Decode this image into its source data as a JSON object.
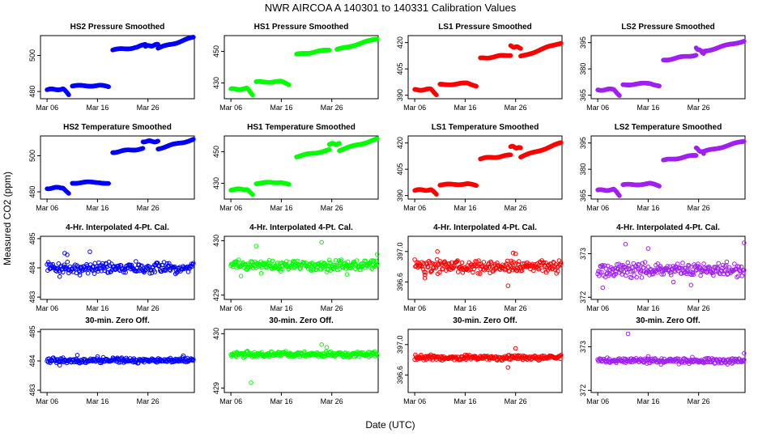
{
  "figure": {
    "title": "NWR   AIRCOA A   140301 to 140331   Calibration Values",
    "xlabel": "Date (UTC)",
    "ylabel": "Measured CO2 (ppm)"
  },
  "colors": {
    "blue": "#0000ff",
    "green": "#00ff00",
    "red": "#ff0000",
    "purple": "#a020f0"
  },
  "x_ticks": {
    "labels": [
      "Mar 06",
      "Mar 16",
      "Mar 26"
    ],
    "days": [
      6,
      16,
      26
    ]
  },
  "chart_data": [
    {
      "type": "scatter",
      "title": "HS2 Pressure Smoothed",
      "color": "blue",
      "marker": "filled",
      "xlim": [
        4.7,
        35.2
      ],
      "ylim": [
        476,
        511
      ],
      "y_ticks": [
        480,
        500
      ],
      "segments": [
        [
          6,
          10.3,
          481,
          481.5,
          -3.5
        ],
        [
          11,
          18.2,
          483,
          483.5,
          -1
        ],
        [
          19,
          25.5,
          503,
          505,
          1
        ],
        [
          25.5,
          28,
          505,
          506,
          0
        ],
        [
          28,
          35,
          504,
          510,
          0
        ]
      ]
    },
    {
      "type": "scatter",
      "title": "HS1 Pressure Smoothed",
      "color": "green",
      "marker": "filled",
      "xlim": [
        4.7,
        35.2
      ],
      "ylim": [
        420,
        460
      ],
      "y_ticks": [
        430,
        450
      ],
      "segments": [
        [
          6,
          10.3,
          426,
          426.5,
          -4
        ],
        [
          11,
          17.5,
          430.5,
          431,
          -2
        ],
        [
          19,
          25.5,
          448,
          451,
          0
        ],
        [
          27,
          35,
          451,
          458,
          0
        ]
      ]
    },
    {
      "type": "scatter",
      "title": "LS1 Pressure Smoothed",
      "color": "red",
      "marker": "filled",
      "xlim": [
        4.7,
        35.2
      ],
      "ylim": [
        388,
        424
      ],
      "y_ticks": [
        390,
        405,
        420
      ],
      "segments": [
        [
          6,
          10.3,
          393,
          393.5,
          -3
        ],
        [
          11,
          18.2,
          396,
          397,
          -1.5
        ],
        [
          19,
          25,
          411,
          413,
          0
        ],
        [
          25,
          27,
          418,
          417,
          0
        ],
        [
          27,
          35,
          412,
          420,
          0
        ]
      ]
    },
    {
      "type": "scatter",
      "title": "LS2 Pressure Smoothed",
      "color": "purple",
      "marker": "filled",
      "xlim": [
        4.7,
        35.2
      ],
      "ylim": [
        363,
        399
      ],
      "y_ticks": [
        365,
        380,
        395
      ],
      "segments": [
        [
          6,
          10.3,
          368,
          368.5,
          -3.5
        ],
        [
          11,
          18.2,
          371,
          372,
          -1.5
        ],
        [
          19,
          25.5,
          385,
          388,
          0
        ],
        [
          25.5,
          27,
          392,
          389,
          0
        ],
        [
          27,
          35,
          390,
          396,
          0
        ]
      ]
    },
    {
      "type": "scatter",
      "title": "HS2 Temperature Smoothed",
      "color": "blue",
      "marker": "filled",
      "xlim": [
        4.7,
        35.2
      ],
      "ylim": [
        476,
        511
      ],
      "y_ticks": [
        480,
        500
      ],
      "segments": [
        [
          6,
          10.3,
          482,
          482.5,
          -3.5
        ],
        [
          11,
          18.2,
          485,
          485.5,
          -1
        ],
        [
          19,
          25,
          502,
          504,
          0
        ],
        [
          25,
          28,
          508,
          508,
          0
        ],
        [
          28,
          35,
          504,
          509,
          0
        ]
      ]
    },
    {
      "type": "scatter",
      "title": "HS1 Temperature Smoothed",
      "color": "green",
      "marker": "filled",
      "xlim": [
        4.7,
        35.2
      ],
      "ylim": [
        420,
        460
      ],
      "y_ticks": [
        430,
        450
      ],
      "segments": [
        [
          6,
          10.3,
          426,
          426.5,
          -4
        ],
        [
          11,
          17.5,
          430,
          431,
          -2
        ],
        [
          19,
          25.5,
          447,
          451,
          0
        ],
        [
          25.5,
          27.5,
          455,
          455,
          0
        ],
        [
          27.5,
          35,
          451,
          458,
          0
        ]
      ]
    },
    {
      "type": "scatter",
      "title": "LS1 Temperature Smoothed",
      "color": "red",
      "marker": "filled",
      "xlim": [
        4.7,
        35.2
      ],
      "ylim": [
        388,
        424
      ],
      "y_ticks": [
        390,
        405,
        420
      ],
      "segments": [
        [
          6,
          10.3,
          393,
          393.5,
          -3
        ],
        [
          11,
          18.2,
          396,
          397,
          -1.5
        ],
        [
          19,
          25,
          411,
          413,
          0
        ],
        [
          25,
          27,
          418,
          417,
          0
        ],
        [
          27,
          35,
          412,
          420,
          0
        ]
      ]
    },
    {
      "type": "scatter",
      "title": "LS2 Temperature Smoothed",
      "color": "purple",
      "marker": "filled",
      "xlim": [
        4.7,
        35.2
      ],
      "ylim": [
        363,
        399
      ],
      "y_ticks": [
        365,
        380,
        395
      ],
      "segments": [
        [
          6,
          10.3,
          368,
          368.5,
          -3.5
        ],
        [
          11,
          18.2,
          371,
          372,
          -1.5
        ],
        [
          19,
          25.5,
          385,
          388,
          0
        ],
        [
          25.5,
          27,
          392,
          389,
          0
        ],
        [
          27,
          35,
          390,
          396,
          0
        ]
      ]
    },
    {
      "type": "scatter",
      "title": "4-Hr. Interpolated 4-Pt. Cal.",
      "color": "blue",
      "marker": "open",
      "xlim": [
        4.7,
        35.2
      ],
      "ylim": [
        482.92,
        485.08
      ],
      "y_ticks": [
        483.0,
        484.0,
        485.0
      ],
      "center": 484.0,
      "spread": 0.11,
      "outliers": [
        [
          9.5,
          484.5
        ],
        [
          10,
          484.45
        ],
        [
          14.5,
          484.55
        ],
        [
          12.5,
          483.75
        ],
        [
          8.5,
          483.7
        ]
      ]
    },
    {
      "type": "scatter",
      "title": "4-Hr. Interpolated 4-Pt. Cal.",
      "color": "green",
      "marker": "open",
      "xlim": [
        4.7,
        35.2
      ],
      "ylim": [
        428.92,
        430.08
      ],
      "y_ticks": [
        429.0,
        430.0
      ],
      "center": 429.55,
      "spread": 0.06,
      "outliers": [
        [
          11,
          429.9
        ],
        [
          24,
          429.97
        ],
        [
          8,
          429.35
        ],
        [
          12,
          429.4
        ],
        [
          29,
          429.38
        ],
        [
          35,
          429.75
        ]
      ]
    },
    {
      "type": "scatter",
      "title": "4-Hr. Interpolated 4-Pt. Cal.",
      "color": "red",
      "marker": "open",
      "xlim": [
        4.7,
        35.2
      ],
      "ylim": [
        396.37,
        397.2
      ],
      "y_ticks": [
        396.6,
        397.0
      ],
      "center": 396.8,
      "spread": 0.05,
      "outliers": [
        [
          10.5,
          397.0
        ],
        [
          25.5,
          396.98
        ],
        [
          26,
          396.97
        ],
        [
          24.5,
          396.55
        ],
        [
          8,
          396.65
        ]
      ]
    },
    {
      "type": "scatter",
      "title": "4-Hr. Interpolated 4-Pt. Cal.",
      "color": "purple",
      "marker": "open",
      "xlim": [
        4.7,
        35.2
      ],
      "ylim": [
        371.95,
        373.4
      ],
      "y_ticks": [
        372.0,
        373.0
      ],
      "center": 372.63,
      "spread": 0.1,
      "outliers": [
        [
          11.5,
          373.22
        ],
        [
          16,
          373.12
        ],
        [
          7,
          372.22
        ],
        [
          21,
          372.35
        ],
        [
          24.5,
          372.28
        ],
        [
          35,
          373.25
        ]
      ]
    },
    {
      "type": "scatter",
      "title": "30-min. Zero Off.",
      "color": "blue",
      "marker": "open",
      "xlim": [
        4.7,
        35.2
      ],
      "ylim": [
        482.92,
        485.08
      ],
      "y_ticks": [
        483.0,
        484.0,
        485.0
      ],
      "center": 484.02,
      "spread": 0.05,
      "outliers": [
        [
          8.5,
          483.85
        ],
        [
          12,
          484.2
        ],
        [
          16,
          484.15
        ],
        [
          33,
          484.18
        ]
      ]
    },
    {
      "type": "scatter",
      "title": "30-min. Zero Off.",
      "color": "green",
      "marker": "open",
      "xlim": [
        4.7,
        35.2
      ],
      "ylim": [
        428.92,
        430.08
      ],
      "y_ticks": [
        429.0,
        430.0
      ],
      "center": 429.62,
      "spread": 0.03,
      "outliers": [
        [
          10,
          429.1
        ],
        [
          24,
          429.8
        ],
        [
          25,
          429.75
        ]
      ]
    },
    {
      "type": "scatter",
      "title": "30-min. Zero Off.",
      "color": "red",
      "marker": "open",
      "xlim": [
        4.7,
        35.2
      ],
      "ylim": [
        396.37,
        397.2
      ],
      "y_ticks": [
        396.6,
        397.0
      ],
      "center": 396.83,
      "spread": 0.02,
      "outliers": [
        [
          26,
          396.95
        ],
        [
          24.5,
          396.7
        ]
      ]
    },
    {
      "type": "scatter",
      "title": "30-min. Zero Off.",
      "color": "purple",
      "marker": "open",
      "xlim": [
        4.7,
        35.2
      ],
      "ylim": [
        371.95,
        373.4
      ],
      "y_ticks": [
        372.0,
        373.0
      ],
      "center": 372.68,
      "spread": 0.04,
      "outliers": [
        [
          12,
          373.3
        ],
        [
          35,
          372.85
        ],
        [
          16,
          372.78
        ]
      ]
    }
  ]
}
